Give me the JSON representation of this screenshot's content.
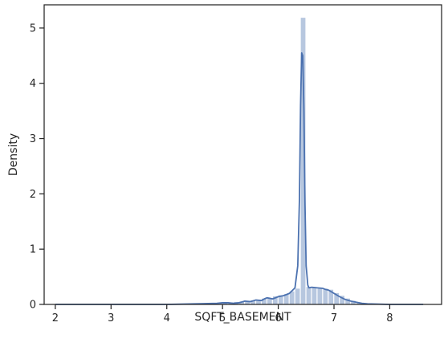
{
  "chart_data": {
    "type": "bar",
    "title": "",
    "xlabel": "SQFT_BASEMENT",
    "ylabel": "Density",
    "xlim": [
      1.8,
      8.93
    ],
    "ylim": [
      0,
      5.42
    ],
    "x_ticks": [
      2,
      3,
      4,
      5,
      6,
      7,
      8
    ],
    "y_ticks": [
      0,
      1,
      2,
      3,
      4,
      5
    ],
    "grid": false,
    "legend": "none",
    "colors": {
      "hist": "#4c72b0",
      "kde": "#4c72b0",
      "axes": "#262626"
    },
    "histogram": {
      "bin_edges": [
        4.6,
        4.7,
        4.8,
        4.9,
        5.0,
        5.1,
        5.2,
        5.3,
        5.4,
        5.5,
        5.6,
        5.7,
        5.8,
        5.9,
        6.0,
        6.1,
        6.2,
        6.3,
        6.4,
        6.5,
        6.6,
        6.7,
        6.8,
        6.9,
        7.0,
        7.1,
        7.2,
        7.3,
        7.4,
        7.5,
        7.6
      ],
      "values": [
        0.01,
        0.02,
        0.02,
        0.03,
        0.04,
        0.04,
        0.05,
        0.06,
        0.07,
        0.08,
        0.09,
        0.11,
        0.12,
        0.15,
        0.17,
        0.19,
        0.24,
        0.29,
        5.19,
        0.32,
        0.3,
        0.29,
        0.29,
        0.27,
        0.21,
        0.16,
        0.11,
        0.07,
        0.04,
        0.02
      ]
    },
    "kde": {
      "x": [
        2.0,
        3.0,
        4.0,
        4.5,
        4.9,
        5.0,
        5.1,
        5.2,
        5.3,
        5.4,
        5.5,
        5.6,
        5.7,
        5.75,
        5.8,
        5.85,
        5.9,
        5.95,
        6.0,
        6.1,
        6.2,
        6.3,
        6.35,
        6.38,
        6.4,
        6.42,
        6.44,
        6.46,
        6.48,
        6.5,
        6.53,
        6.55,
        6.6,
        6.7,
        6.8,
        6.85,
        6.9,
        7.0,
        7.1,
        7.2,
        7.3,
        7.4,
        7.5,
        7.6,
        7.8,
        8.0,
        8.6
      ],
      "y": [
        0.0,
        0.0,
        0.0,
        0.01,
        0.02,
        0.03,
        0.03,
        0.02,
        0.03,
        0.06,
        0.05,
        0.08,
        0.07,
        0.1,
        0.12,
        0.11,
        0.1,
        0.12,
        0.14,
        0.16,
        0.2,
        0.3,
        0.7,
        1.9,
        3.6,
        4.55,
        4.5,
        3.5,
        1.8,
        0.7,
        0.35,
        0.3,
        0.31,
        0.3,
        0.29,
        0.27,
        0.26,
        0.2,
        0.14,
        0.09,
        0.06,
        0.04,
        0.02,
        0.01,
        0.005,
        0.0,
        0.0
      ]
    }
  }
}
